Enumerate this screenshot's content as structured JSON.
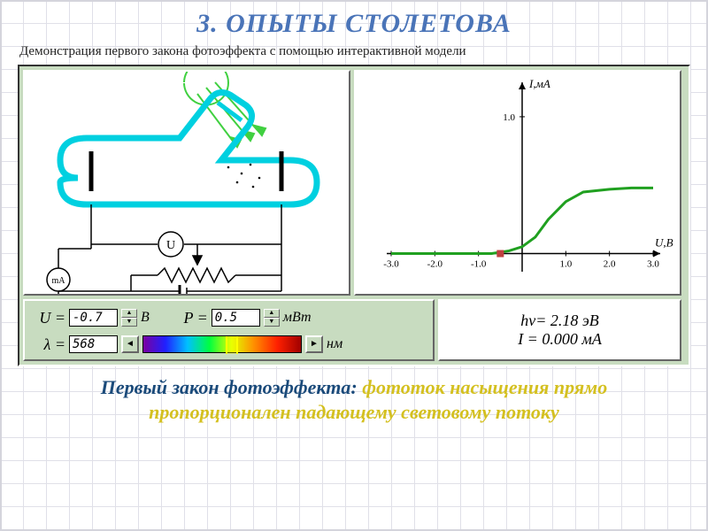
{
  "title": "3. ОПЫТЫ СТОЛЕТОВА",
  "subtitle": "Демонстрация первого закона фотоэффекта с помощью интерактивной модели",
  "circuit": {
    "tube_color": "#00d0e0",
    "light_color": "#40d040",
    "meter_voltage_label": "U",
    "meter_current_label": "mA"
  },
  "chart": {
    "type": "line",
    "x_label": "U,B",
    "y_label": "I,мА",
    "xlim": [
      -3,
      3
    ],
    "ylim": [
      -0.1,
      1.2
    ],
    "xticks": [
      -3.0,
      -2.0,
      -1.0,
      1.0,
      2.0,
      3.0
    ],
    "yticks": [
      1.0
    ],
    "line_color": "#20a020",
    "marker_color": "#c04040",
    "marker_x": -0.5,
    "curve": [
      [
        -3.0,
        0.0
      ],
      [
        -2.0,
        0.0
      ],
      [
        -1.2,
        0.0
      ],
      [
        -0.7,
        0.0
      ],
      [
        -0.3,
        0.02
      ],
      [
        0.0,
        0.05
      ],
      [
        0.3,
        0.12
      ],
      [
        0.6,
        0.25
      ],
      [
        1.0,
        0.38
      ],
      [
        1.4,
        0.45
      ],
      [
        2.0,
        0.47
      ],
      [
        2.5,
        0.48
      ],
      [
        3.0,
        0.48
      ]
    ],
    "background_color": "#ffffff",
    "axis_color": "#000000",
    "tick_fontsize": 11
  },
  "controls": {
    "voltage": {
      "label": "U =",
      "value": "-0.7",
      "unit": "В"
    },
    "power": {
      "label": "P =",
      "value": "0.5",
      "unit": "мВт"
    },
    "lambda": {
      "label": "λ =",
      "value": "568",
      "unit": "нм",
      "cursor_percent": 52
    }
  },
  "readout": {
    "energy": "hν= 2.18 эВ",
    "current": "I = 0.000 мА"
  },
  "law": {
    "lead": "Первый закон фотоэффекта:",
    "body": "фототок насыщения прямо пропорционален падающему световому потоку"
  },
  "colors": {
    "panel_bg": "#c8dcc0",
    "title_color": "#4a74b8",
    "law_lead": "#1a4a7a",
    "law_body": "#d4c020"
  }
}
